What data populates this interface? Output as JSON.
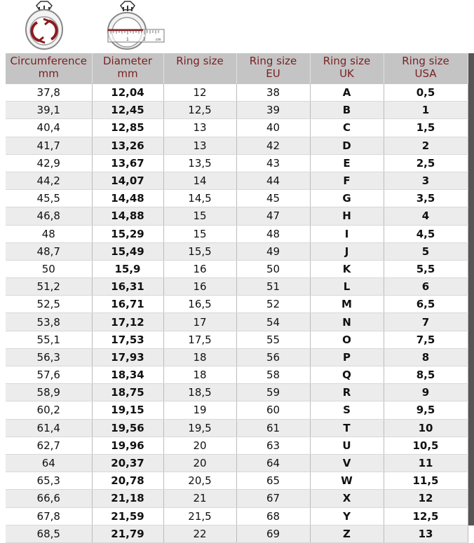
{
  "headers": [
    [
      "Circumference",
      "mm"
    ],
    [
      "Diameter",
      "mm"
    ],
    [
      "Ring size",
      ""
    ],
    [
      "Ring size",
      "EU"
    ],
    [
      "Ring size",
      "UK"
    ],
    [
      "Ring size",
      "USA"
    ]
  ],
  "rows": [
    [
      "37,8",
      "12,04",
      "12",
      "38",
      "A",
      "0,5"
    ],
    [
      "39,1",
      "12,45",
      "12,5",
      "39",
      "B",
      "1"
    ],
    [
      "40,4",
      "12,85",
      "13",
      "40",
      "C",
      "1,5"
    ],
    [
      "41,7",
      "13,26",
      "13",
      "42",
      "D",
      "2"
    ],
    [
      "42,9",
      "13,67",
      "13,5",
      "43",
      "E",
      "2,5"
    ],
    [
      "44,2",
      "14,07",
      "14",
      "44",
      "F",
      "3"
    ],
    [
      "45,5",
      "14,48",
      "14,5",
      "45",
      "G",
      "3,5"
    ],
    [
      "46,8",
      "14,88",
      "15",
      "47",
      "H",
      "4"
    ],
    [
      "48",
      "15,29",
      "15",
      "48",
      "I",
      "4,5"
    ],
    [
      "48,7",
      "15,49",
      "15,5",
      "49",
      "J",
      "5"
    ],
    [
      "50",
      "15,9",
      "16",
      "50",
      "K",
      "5,5"
    ],
    [
      "51,2",
      "16,31",
      "16",
      "51",
      "L",
      "6"
    ],
    [
      "52,5",
      "16,71",
      "16,5",
      "52",
      "M",
      "6,5"
    ],
    [
      "53,8",
      "17,12",
      "17",
      "54",
      "N",
      "7"
    ],
    [
      "55,1",
      "17,53",
      "17,5",
      "55",
      "O",
      "7,5"
    ],
    [
      "56,3",
      "17,93",
      "18",
      "56",
      "P",
      "8"
    ],
    [
      "57,6",
      "18,34",
      "18",
      "58",
      "Q",
      "8,5"
    ],
    [
      "58,9",
      "18,75",
      "18,5",
      "59",
      "R",
      "9"
    ],
    [
      "60,2",
      "19,15",
      "19",
      "60",
      "S",
      "9,5"
    ],
    [
      "61,4",
      "19,56",
      "19,5",
      "61",
      "T",
      "10"
    ],
    [
      "62,7",
      "19,96",
      "20",
      "63",
      "U",
      "10,5"
    ],
    [
      "64",
      "20,37",
      "20",
      "64",
      "V",
      "11"
    ],
    [
      "65,3",
      "20,78",
      "20,5",
      "65",
      "W",
      "11,5"
    ],
    [
      "66,6",
      "21,18",
      "21",
      "67",
      "X",
      "12"
    ],
    [
      "67,8",
      "21,59",
      "21,5",
      "68",
      "Y",
      "12,5"
    ],
    [
      "68,5",
      "21,79",
      "22",
      "69",
      "Z",
      "13"
    ]
  ],
  "ruler_labels": [
    "1",
    "2",
    "cm"
  ],
  "colors": {
    "header_text": "#7a1f22",
    "header_bg": "#c4c4c4",
    "accent": "#8b1a1f"
  }
}
